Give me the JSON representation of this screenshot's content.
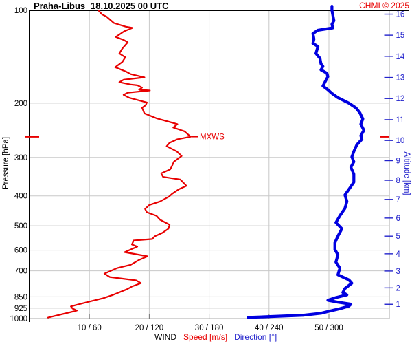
{
  "header": {
    "station": "Praha-Libus",
    "datetime": "18.10.2025 00 UTC",
    "copyright": "CHMI © 2025"
  },
  "colors": {
    "speed": "#e80000",
    "direction": "#0000e0",
    "blue_text": "#2222cc",
    "grid": "#c8c8c8",
    "axis_minor": "#aaaaaa",
    "tick": "#777777",
    "frame": "#000000",
    "background": "#ffffff"
  },
  "chart_data": {
    "type": "line",
    "title": "Praha-Libus 18.10.2025 00 UTC",
    "x_axis": {
      "label": "WIND",
      "speed_label": "Speed [m/s]",
      "direction_label": "Direction [°]",
      "tick_labels": [
        "10 / 60",
        "20 / 120",
        "30 / 180",
        "40 / 240",
        "50 / 300"
      ],
      "speed_ticks": [
        10,
        20,
        30,
        40,
        50
      ],
      "direction_ticks": [
        60,
        120,
        180,
        240,
        300
      ],
      "speed_range": [
        0,
        60
      ],
      "direction_range": [
        0,
        360
      ],
      "grid": true
    },
    "y_axis": {
      "label": "Pressure [hPa]",
      "scale": "log",
      "ticks": [
        100,
        200,
        300,
        400,
        500,
        600,
        700,
        850,
        925,
        1000
      ],
      "range": [
        100,
        1000
      ],
      "grid": true
    },
    "y2_axis": {
      "label": "Altitude [km]",
      "ticks_km": [
        1,
        2,
        3,
        4,
        5,
        6,
        7,
        8,
        9,
        10,
        11,
        12,
        13,
        14,
        15,
        16
      ],
      "tick_pressures_hPa": [
        898.8,
        795.0,
        701.1,
        616.4,
        540.2,
        471.8,
        410.6,
        356.0,
        307.4,
        264.4,
        226.3,
        193.3,
        165.1,
        141.0,
        120.4,
        102.9
      ]
    },
    "annotations": {
      "mxws_label": "MXWS",
      "mxws_pressure_hPa": 257,
      "mxws_speed_ms": 26.9
    },
    "series": [
      {
        "name": "wind-speed",
        "units": "m/s",
        "color": "#e80000",
        "points": [
          [
            100,
            11.5
          ],
          [
            103,
            12.1
          ],
          [
            105,
            12.9
          ],
          [
            110,
            14.1
          ],
          [
            113,
            16.1
          ],
          [
            114,
            17.2
          ],
          [
            117,
            15.8
          ],
          [
            122,
            14.4
          ],
          [
            125,
            15.8
          ],
          [
            127,
            16.4
          ],
          [
            133,
            15.5
          ],
          [
            138,
            15.0
          ],
          [
            142,
            16.0
          ],
          [
            147,
            15.5
          ],
          [
            153,
            14.3
          ],
          [
            158,
            16.1
          ],
          [
            161,
            16.9
          ],
          [
            165,
            19.2
          ],
          [
            168,
            15.7
          ],
          [
            171,
            15.0
          ],
          [
            174,
            16.9
          ],
          [
            175,
            18.0
          ],
          [
            178,
            18.8
          ],
          [
            181,
            18.3
          ],
          [
            182,
            20.1
          ],
          [
            185,
            16.4
          ],
          [
            188,
            15.7
          ],
          [
            192,
            16.6
          ],
          [
            196,
            18.3
          ],
          [
            199,
            19.6
          ],
          [
            203,
            19.4
          ],
          [
            207,
            18.8
          ],
          [
            216,
            19.2
          ],
          [
            224,
            21.2
          ],
          [
            234,
            24.7
          ],
          [
            240,
            24.0
          ],
          [
            247,
            25.9
          ],
          [
            257,
            26.9
          ],
          [
            262,
            24.7
          ],
          [
            269,
            23.4
          ],
          [
            276,
            22.9
          ],
          [
            287,
            24.6
          ],
          [
            297,
            25.4
          ],
          [
            310,
            24.1
          ],
          [
            320,
            23.8
          ],
          [
            328,
            23.5
          ],
          [
            338,
            22.0
          ],
          [
            347,
            22.3
          ],
          [
            354,
            25.2
          ],
          [
            371,
            26.2
          ],
          [
            381,
            24.9
          ],
          [
            394,
            23.8
          ],
          [
            402,
            23.3
          ],
          [
            417,
            21.8
          ],
          [
            428,
            20.0
          ],
          [
            441,
            19.3
          ],
          [
            452,
            19.6
          ],
          [
            464,
            21.2
          ],
          [
            478,
            21.8
          ],
          [
            496,
            23.4
          ],
          [
            511,
            23.2
          ],
          [
            527,
            22.2
          ],
          [
            541,
            20.9
          ],
          [
            552,
            20.5
          ],
          [
            558,
            17.4
          ],
          [
            575,
            17.1
          ],
          [
            584,
            18.0
          ],
          [
            609,
            15.9
          ],
          [
            628,
            19.7
          ],
          [
            645,
            18.3
          ],
          [
            669,
            16.9
          ],
          [
            686,
            14.6
          ],
          [
            715,
            12.5
          ],
          [
            733,
            13.4
          ],
          [
            752,
            17.8
          ],
          [
            768,
            18.6
          ],
          [
            787,
            17.1
          ],
          [
            803,
            16.3
          ],
          [
            837,
            14.0
          ],
          [
            859,
            12.3
          ],
          [
            890,
            9.1
          ],
          [
            913,
            6.9
          ],
          [
            928,
            7.2
          ],
          [
            942,
            7.9
          ],
          [
            962,
            6.0
          ],
          [
            993,
            3.1
          ]
        ]
      },
      {
        "name": "wind-direction",
        "units": "deg",
        "color": "#0000e0",
        "points": [
          [
            97,
            303
          ],
          [
            100,
            303
          ],
          [
            104,
            304
          ],
          [
            108,
            305
          ],
          [
            111,
            303
          ],
          [
            114,
            304
          ],
          [
            116,
            289
          ],
          [
            119,
            284
          ],
          [
            124,
            285
          ],
          [
            128,
            284
          ],
          [
            131,
            289
          ],
          [
            138,
            287
          ],
          [
            143,
            291
          ],
          [
            149,
            292
          ],
          [
            152,
            294
          ],
          [
            156,
            292
          ],
          [
            160,
            298
          ],
          [
            164,
            299
          ],
          [
            171,
            296
          ],
          [
            176,
            294
          ],
          [
            181,
            299
          ],
          [
            186,
            303
          ],
          [
            192,
            309
          ],
          [
            200,
            320
          ],
          [
            207,
            327
          ],
          [
            215,
            331
          ],
          [
            225,
            334
          ],
          [
            234,
            332
          ],
          [
            245,
            335
          ],
          [
            255,
            332
          ],
          [
            262,
            333
          ],
          [
            273,
            328
          ],
          [
            287,
            325
          ],
          [
            299,
            323
          ],
          [
            310,
            325
          ],
          [
            323,
            322
          ],
          [
            340,
            325
          ],
          [
            361,
            325
          ],
          [
            377,
            321
          ],
          [
            397,
            316
          ],
          [
            417,
            318
          ],
          [
            439,
            316
          ],
          [
            464,
            311
          ],
          [
            488,
            307
          ],
          [
            511,
            313
          ],
          [
            540,
            309
          ],
          [
            568,
            306
          ],
          [
            597,
            306
          ],
          [
            621,
            309
          ],
          [
            656,
            307
          ],
          [
            686,
            311
          ],
          [
            721,
            309
          ],
          [
            749,
            320
          ],
          [
            768,
            323
          ],
          [
            799,
            316
          ],
          [
            823,
            314
          ],
          [
            838,
            318
          ],
          [
            855,
            307
          ],
          [
            872,
            299
          ],
          [
            885,
            309
          ],
          [
            898,
            322
          ],
          [
            911,
            320
          ],
          [
            929,
            311
          ],
          [
            947,
            300
          ],
          [
            961,
            292
          ],
          [
            975,
            275
          ],
          [
            992,
            219
          ]
        ]
      }
    ]
  }
}
